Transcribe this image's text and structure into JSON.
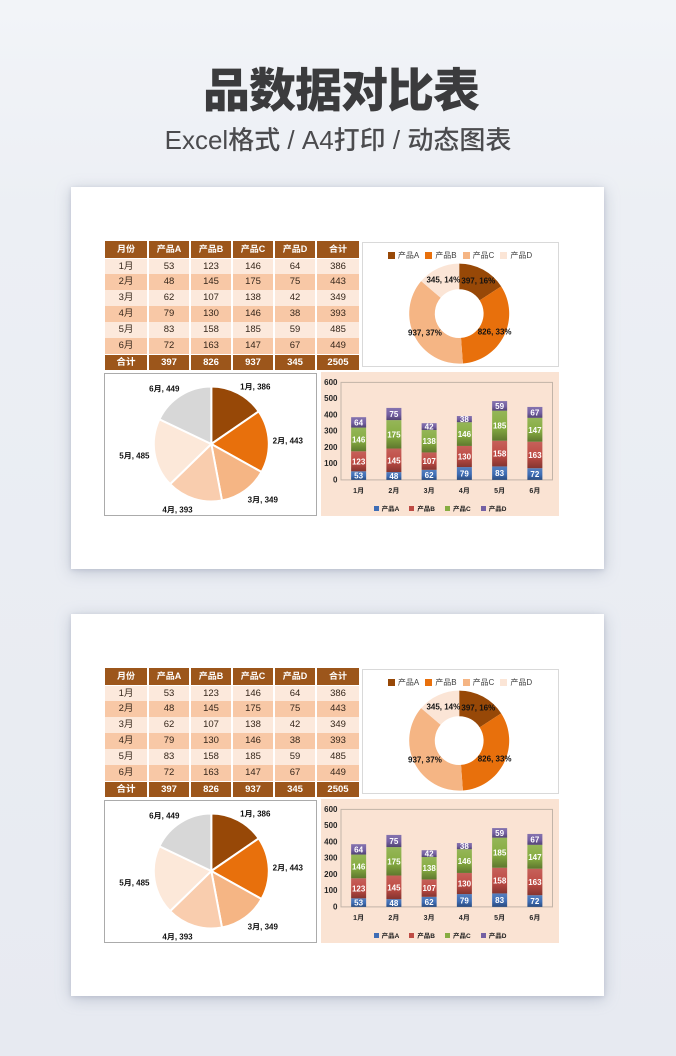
{
  "page": {
    "title": "品数据对比表",
    "subtitle": "Excel格式 / A4打印 / 动态图表",
    "background": "#EAEDF3",
    "card_background": "#FFFFFF"
  },
  "table": {
    "columns": [
      "月份",
      "产品A",
      "产品B",
      "产品C",
      "产品D",
      "合计"
    ],
    "rows": [
      [
        "1月",
        "53",
        "123",
        "146",
        "64",
        "386"
      ],
      [
        "2月",
        "48",
        "145",
        "175",
        "75",
        "443"
      ],
      [
        "3月",
        "62",
        "107",
        "138",
        "42",
        "349"
      ],
      [
        "4月",
        "79",
        "130",
        "146",
        "38",
        "393"
      ],
      [
        "5月",
        "83",
        "158",
        "185",
        "59",
        "485"
      ],
      [
        "6月",
        "72",
        "163",
        "147",
        "67",
        "449"
      ]
    ],
    "footer": [
      "合计",
      "397",
      "826",
      "937",
      "345",
      "2505"
    ],
    "style": {
      "header_bg": "#9C561B",
      "header_text": "#FFFFFF",
      "row_odd_bg": "#FCE9DC",
      "row_even_bg": "#F8C8A6",
      "footer_bg": "#9C561B",
      "footer_text": "#FFFFFF",
      "body_text": "#35261A"
    }
  },
  "chart_data": [
    {
      "id": "product-donut",
      "type": "pie",
      "subtype": "donut",
      "title": "",
      "categories": [
        "产品A",
        "产品B",
        "产品C",
        "产品D"
      ],
      "values": [
        397,
        826,
        937,
        345
      ],
      "labels": [
        "397, 16%",
        "826, 33%",
        "937, 37%",
        "345, 14%"
      ],
      "colors": [
        "#974807",
        "#E8700C",
        "#F5B584",
        "#FBE5D6"
      ],
      "legend_position": "top",
      "start_angle_deg": 0
    },
    {
      "id": "month-pie",
      "type": "pie",
      "subtype": "pie",
      "title": "",
      "categories": [
        "1月",
        "2月",
        "3月",
        "4月",
        "5月",
        "6月"
      ],
      "values": [
        386,
        443,
        349,
        393,
        485,
        449
      ],
      "labels": [
        "1月, 386",
        "2月, 443",
        "3月, 349",
        "4月, 393",
        "5月, 485",
        "6月, 449"
      ],
      "colors": [
        "#974807",
        "#E8700C",
        "#F5B584",
        "#F9CDAE",
        "#FCE8D9",
        "#D7D7D7"
      ],
      "legend_position": "none",
      "start_angle_deg": 0
    },
    {
      "id": "month-stacked-bar",
      "type": "bar",
      "subtype": "stacked",
      "title": "",
      "categories": [
        "1月",
        "2月",
        "3月",
        "4月",
        "5月",
        "6月"
      ],
      "series": [
        {
          "name": "产品A",
          "color": "#3E6DB5",
          "values": [
            53,
            48,
            62,
            79,
            83,
            72
          ]
        },
        {
          "name": "产品B",
          "color": "#BE4B44",
          "values": [
            123,
            145,
            107,
            130,
            158,
            163
          ]
        },
        {
          "name": "产品C",
          "color": "#86AC41",
          "values": [
            146,
            175,
            138,
            146,
            185,
            147
          ]
        },
        {
          "name": "产品D",
          "color": "#7460A3",
          "values": [
            64,
            75,
            42,
            38,
            59,
            67
          ]
        }
      ],
      "ylabel": "",
      "xlabel": "",
      "ylim": [
        0,
        600
      ],
      "ytick_step": 100,
      "grid": false,
      "legend_position": "bottom",
      "background": "#FAE3D3"
    }
  ]
}
